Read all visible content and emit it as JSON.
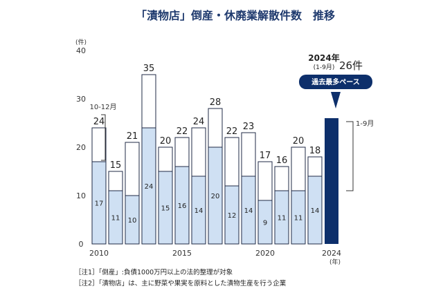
{
  "chart_data": {
    "type": "bar",
    "title": "「漬物店」倒産・休廃業解散件数　推移",
    "y_unit": "(件)",
    "x_unit": "(年)",
    "ylim": [
      0,
      40
    ],
    "yticks": [
      0,
      10,
      20,
      30,
      40
    ],
    "x": [
      2010,
      2011,
      2012,
      2013,
      2014,
      2015,
      2016,
      2017,
      2018,
      2019,
      2020,
      2021,
      2022,
      2023,
      2024
    ],
    "x_tick_labels": [
      "2010",
      "2015",
      "2020",
      "2024"
    ],
    "totals": [
      24,
      15,
      21,
      35,
      20,
      22,
      24,
      28,
      22,
      23,
      17,
      16,
      20,
      18,
      26
    ],
    "series": [
      {
        "name": "1-9月",
        "values": [
          17,
          11,
          10,
          24,
          15,
          16,
          14,
          20,
          12,
          14,
          9,
          11,
          11,
          14,
          26
        ]
      },
      {
        "name": "10-12月",
        "values": [
          7,
          4,
          11,
          11,
          5,
          6,
          10,
          8,
          10,
          9,
          8,
          5,
          9,
          4,
          null
        ]
      }
    ],
    "legend_10_12": "10-12月",
    "legend_1_9": "1-9月",
    "highlight": {
      "year_label": "2024年",
      "period_label": "(1-9月)",
      "value_label": "26件",
      "badge": "過去最多ペース"
    },
    "colors": {
      "lower": "#cfe0f3",
      "upper": "#ffffff",
      "highlight": "#0d2f6b",
      "stroke": "#1f2a44"
    }
  },
  "notes": [
    "［注1］「倒産」:負債1000万円以上の法的整理が対象",
    "［注2］「漬物店」は、主に野菜や果実を原料とした漬物生産を行う企業"
  ]
}
